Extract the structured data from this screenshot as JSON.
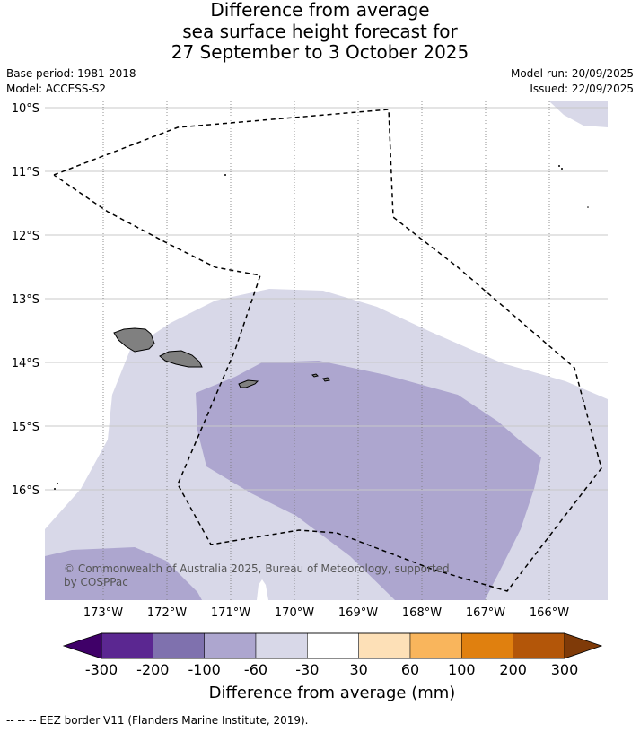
{
  "title": {
    "line1": "Difference from average",
    "line2": "sea surface height forecast for",
    "line3": "27 September to 3 October 2025"
  },
  "meta": {
    "base_period": "Base period: 1981-2018",
    "model": "Model: ACCESS-S2",
    "model_run": "Model run: 20/09/2025",
    "issued": "Issued: 22/09/2025"
  },
  "map": {
    "lat_labels": [
      "10°S",
      "11°S",
      "12°S",
      "13°S",
      "14°S",
      "15°S",
      "16°S"
    ],
    "lon_labels": [
      "173°W",
      "172°W",
      "171°W",
      "170°W",
      "169°W",
      "168°W",
      "167°W",
      "166°W"
    ],
    "copyright_line1": "© Commonwealth of Australia 2025, Bureau of Meteorology, supported",
    "copyright_line2": "by COSPPac",
    "land_color": "#808080"
  },
  "colorbar": {
    "tick_labels": [
      "-300",
      "-200",
      "-100",
      "-60",
      "-30",
      "30",
      "60",
      "100",
      "200",
      "300"
    ],
    "colors": [
      "#3f0068",
      "#5b2791",
      "#7f71ae",
      "#ada6cf",
      "#d8d8e8",
      "#ffffff",
      "#fde0b7",
      "#f9b55c",
      "#e0800f",
      "#b35609",
      "#7f3a08"
    ],
    "label": "Difference from average (mm)"
  },
  "footer": {
    "eez_note": "-- -- -- EEZ border V11 (Flanders Marine Institute, 2019)."
  }
}
